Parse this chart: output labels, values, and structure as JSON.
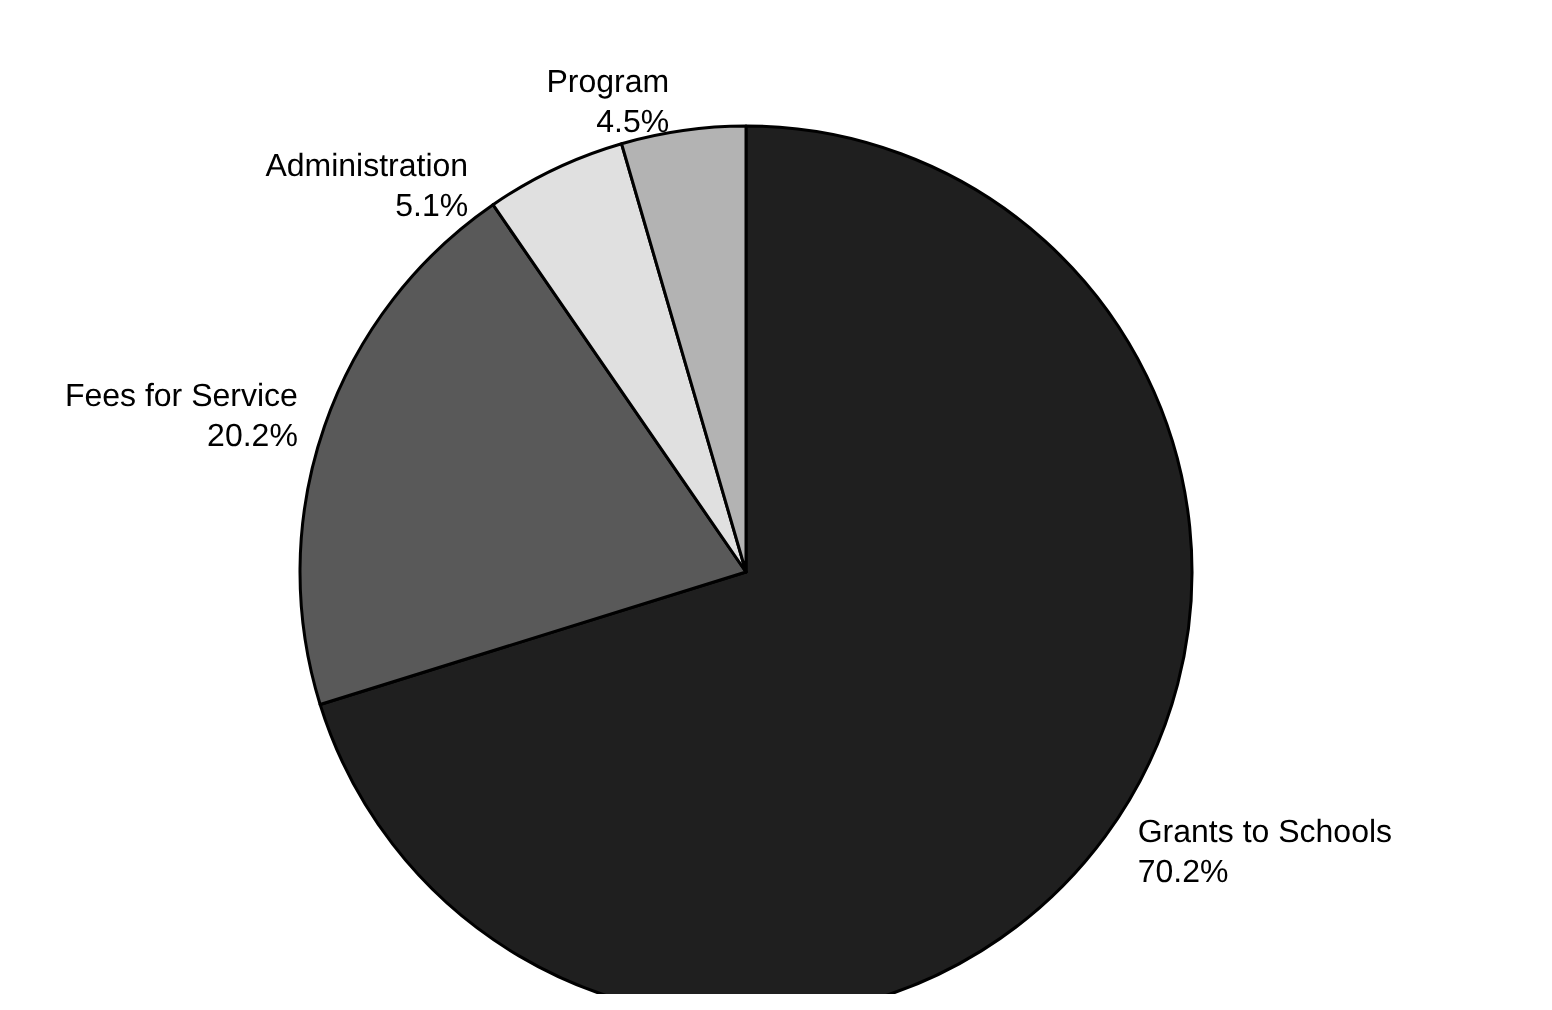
{
  "chart_data": {
    "type": "pie",
    "categories": [
      "Grants to Schools",
      "Fees for Service",
      "Administration",
      "Program"
    ],
    "values": [
      70.2,
      20.2,
      5.1,
      4.5
    ],
    "colors": [
      "#1f1f1f",
      "#595959",
      "#e0e0e0",
      "#b3b3b3"
    ],
    "value_labels": [
      "70.2%",
      "20.2%",
      "5.1%",
      "4.5%"
    ],
    "legend": false
  }
}
